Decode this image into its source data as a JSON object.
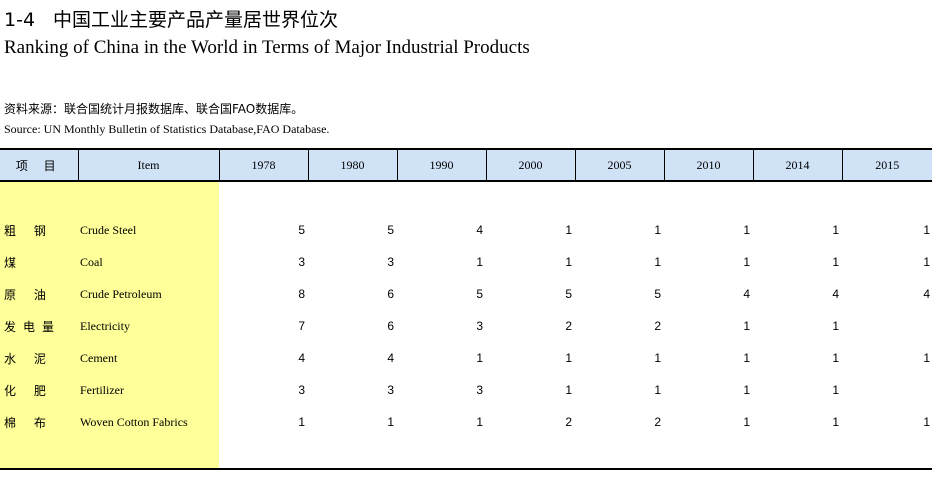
{
  "title": {
    "number": "1-4",
    "cn": "中国工业主要产品产量居世界位次",
    "en": "Ranking of China in the World in Terms of Major Industrial Products"
  },
  "source": {
    "cn": "资料来源：联合国统计月报数据库、联合国FAO数据库。",
    "en": "Source: UN Monthly Bulletin of Statistics Database,FAO Database."
  },
  "table": {
    "header": {
      "item_cn": "项 目",
      "item_en": "Item",
      "years": [
        "1978",
        "1980",
        "1990",
        "2000",
        "2005",
        "2010",
        "2014",
        "2015"
      ]
    },
    "rows": [
      {
        "cn": "粗 钢",
        "en": "Crude Steel",
        "values": [
          "5",
          "5",
          "4",
          "1",
          "1",
          "1",
          "1",
          "1"
        ]
      },
      {
        "cn": "煤",
        "en": "Coal",
        "values": [
          "3",
          "3",
          "1",
          "1",
          "1",
          "1",
          "1",
          "1"
        ]
      },
      {
        "cn": "原 油",
        "en": "Crude Petroleum",
        "values": [
          "8",
          "6",
          "5",
          "5",
          "5",
          "4",
          "4",
          "4"
        ]
      },
      {
        "cn": "发电量",
        "en": "Electricity",
        "values": [
          "7",
          "6",
          "3",
          "2",
          "2",
          "1",
          "1",
          ""
        ]
      },
      {
        "cn": "水 泥",
        "en": "Cement",
        "values": [
          "4",
          "4",
          "1",
          "1",
          "1",
          "1",
          "1",
          "1"
        ]
      },
      {
        "cn": "化 肥",
        "en": "Fertilizer",
        "values": [
          "3",
          "3",
          "3",
          "1",
          "1",
          "1",
          "1",
          ""
        ]
      },
      {
        "cn": "棉 布",
        "en": "Woven Cotton Fabrics",
        "values": [
          "1",
          "1",
          "1",
          "2",
          "2",
          "1",
          "1",
          "1"
        ]
      }
    ]
  },
  "colors": {
    "header_bg": "#cfe2f6",
    "item_column_bg": "#ffff99"
  }
}
